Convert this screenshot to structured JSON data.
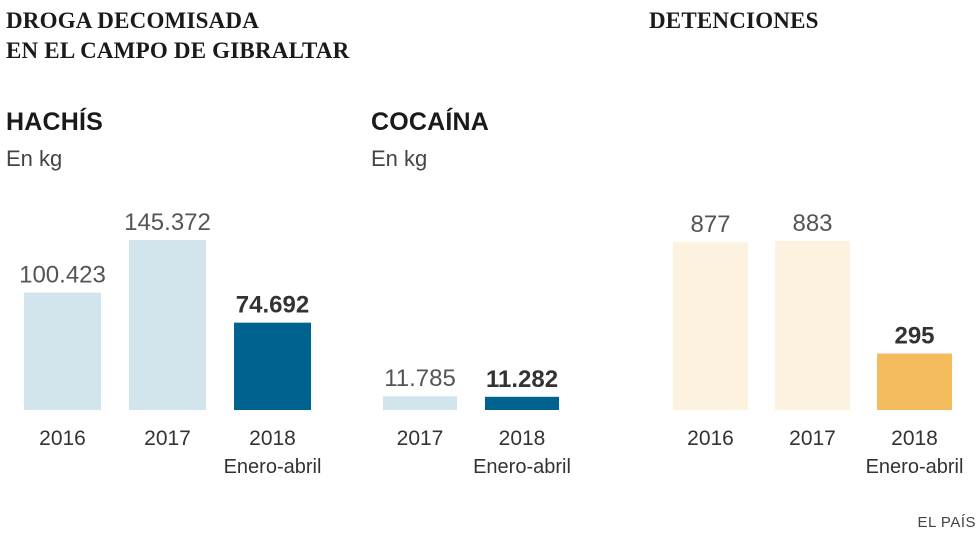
{
  "header": {
    "title_line1": "DROGA DECOMISADA",
    "title_line2": "EN EL CAMPO DE GIBRALTAR",
    "right_title": "DETENCIONES"
  },
  "panels": {
    "hachis": {
      "title": "HACHÍS",
      "unit": "En kg"
    },
    "cocaina": {
      "title": "COCAÍNA",
      "unit": "En kg"
    }
  },
  "colors": {
    "light_blue": "#d2e4ec",
    "dark_blue": "#00628f",
    "light_orange": "#fdf2e0",
    "orange": "#f4bc5c"
  },
  "credit": "EL PAÍS",
  "chart_data": [
    {
      "id": "hachis",
      "type": "bar",
      "title": "HACHÍS",
      "ylabel": "En kg",
      "categories": [
        "2016",
        "2017",
        "2018"
      ],
      "category_sublabels": [
        "",
        "",
        "Enero-abril"
      ],
      "values": [
        100423,
        145372,
        74692
      ],
      "value_labels": [
        "100.423",
        "145.372",
        "74.692"
      ],
      "highlight": [
        false,
        false,
        true
      ]
    },
    {
      "id": "cocaina",
      "type": "bar",
      "title": "COCAÍNA",
      "ylabel": "En kg",
      "categories": [
        "2017",
        "2018"
      ],
      "category_sublabels": [
        "",
        "Enero-abril"
      ],
      "values": [
        11785,
        11282
      ],
      "value_labels": [
        "11.785",
        "11.282"
      ],
      "highlight": [
        false,
        true
      ]
    },
    {
      "id": "detenciones",
      "type": "bar",
      "title": "DETENCIONES",
      "categories": [
        "2016",
        "2017",
        "2018"
      ],
      "category_sublabels": [
        "",
        "",
        "Enero-abril"
      ],
      "values": [
        877,
        883,
        295
      ],
      "value_labels": [
        "877",
        "883",
        "295"
      ],
      "highlight": [
        false,
        false,
        true
      ]
    }
  ]
}
